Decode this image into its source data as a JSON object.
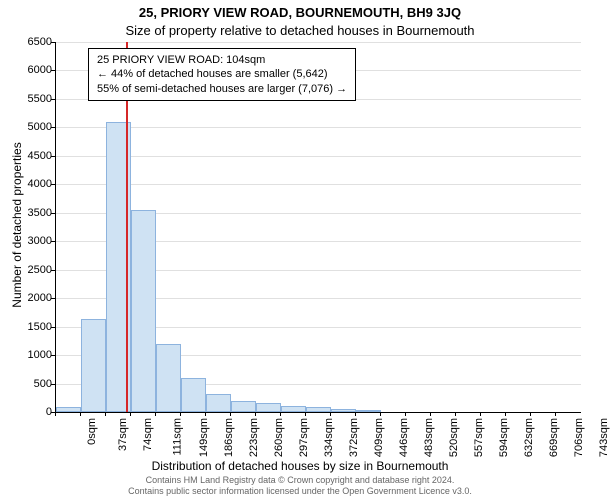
{
  "titles": {
    "main": "25, PRIORY VIEW ROAD, BOURNEMOUTH, BH9 3JQ",
    "sub": "Size of property relative to detached houses in Bournemouth"
  },
  "annotation": {
    "line1": "25 PRIORY VIEW ROAD: 104sqm",
    "line2": "← 44% of detached houses are smaller (5,642)",
    "line3": "55% of semi-detached houses are larger (7,076) →"
  },
  "axes": {
    "y_title": "Number of detached properties",
    "x_title": "Distribution of detached houses by size in Bournemouth",
    "ylim": [
      0,
      6500
    ],
    "ytick_step": 500,
    "yticks": [
      0,
      500,
      1000,
      1500,
      2000,
      2500,
      3000,
      3500,
      4000,
      4500,
      5000,
      5500,
      6000,
      6500
    ],
    "xticks_labels": [
      "0sqm",
      "37sqm",
      "74sqm",
      "111sqm",
      "149sqm",
      "186sqm",
      "223sqm",
      "260sqm",
      "297sqm",
      "334sqm",
      "372sqm",
      "409sqm",
      "446sqm",
      "483sqm",
      "520sqm",
      "557sqm",
      "594sqm",
      "632sqm",
      "669sqm",
      "706sqm",
      "743sqm"
    ]
  },
  "chart": {
    "type": "histogram",
    "bar_color": "#cfe2f3",
    "bar_border_color": "#8db3de",
    "background_color": "#ffffff",
    "grid_color": "#e0e0e0",
    "reference_line_x_bin": 2.78,
    "reference_line_color": "#d62728",
    "values": [
      80,
      1640,
      5100,
      3550,
      1200,
      600,
      310,
      200,
      150,
      100,
      80,
      60,
      40,
      0,
      0,
      0,
      0,
      0,
      0,
      0,
      0
    ]
  },
  "footer": {
    "line1": "Contains HM Land Registry data © Crown copyright and database right 2024.",
    "line2": "Contains public sector information licensed under the Open Government Licence v3.0."
  }
}
